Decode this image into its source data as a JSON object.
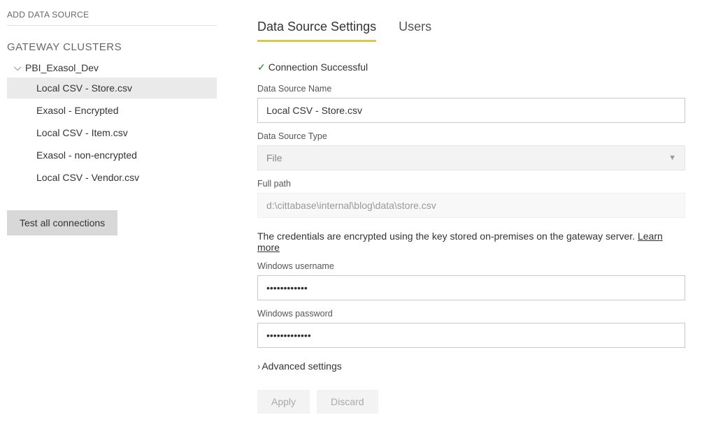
{
  "sidebar": {
    "add_data_source": "ADD DATA SOURCE",
    "clusters_heading": "GATEWAY CLUSTERS",
    "cluster_name": "PBI_Exasol_Dev",
    "data_sources": [
      {
        "label": "Local CSV - Store.csv",
        "selected": true
      },
      {
        "label": "Exasol - Encrypted",
        "selected": false
      },
      {
        "label": "Local CSV - Item.csv",
        "selected": false
      },
      {
        "label": "Exasol - non-encrypted",
        "selected": false
      },
      {
        "label": "Local CSV - Vendor.csv",
        "selected": false
      }
    ],
    "test_button": "Test all connections"
  },
  "tabs": {
    "settings": "Data Source Settings",
    "users": "Users"
  },
  "status": {
    "text": "Connection Successful"
  },
  "form": {
    "name_label": "Data Source Name",
    "name_value": "Local CSV - Store.csv",
    "type_label": "Data Source Type",
    "type_value": "File",
    "path_label": "Full path",
    "path_value": "d:\\cittabase\\internal\\blog\\data\\store.csv",
    "credentials_info": "The credentials are encrypted using the key stored on-premises on the gateway server. ",
    "learn_more": "Learn more",
    "win_user_label": "Windows username",
    "win_user_value": "••••••••••••",
    "win_pass_label": "Windows password",
    "win_pass_value": "•••••••••••••",
    "advanced": "Advanced settings",
    "apply": "Apply",
    "discard": "Discard"
  }
}
